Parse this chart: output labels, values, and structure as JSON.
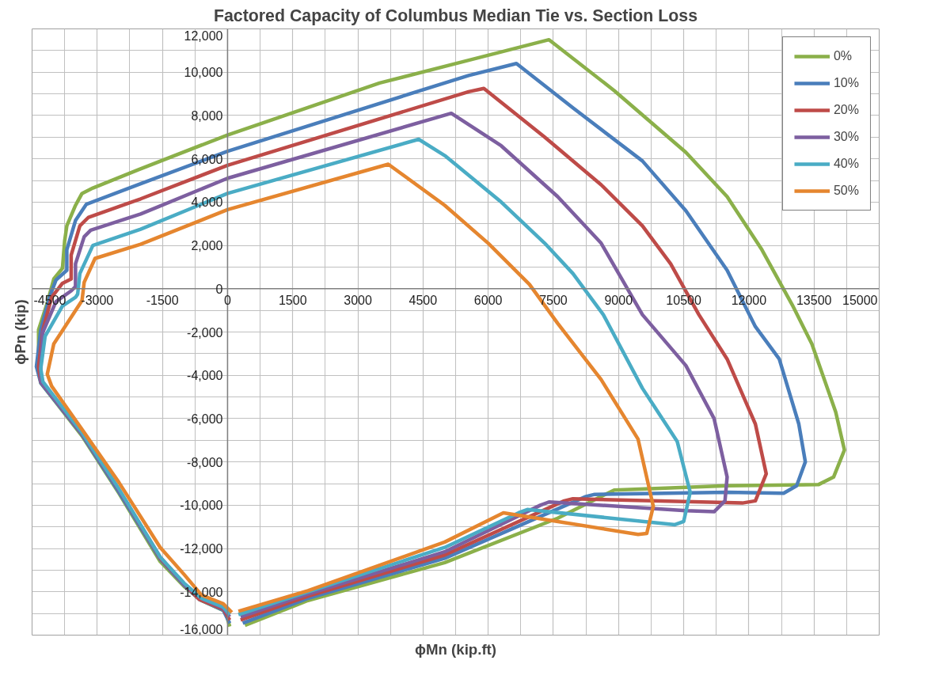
{
  "chart_data": {
    "type": "line",
    "title": "Factored Capacity of Columbus Median Tie vs. Section Loss",
    "xlabel": "ϕMn (kip.ft)",
    "ylabel": "ϕPn (kip)",
    "xlim": [
      -4500,
      15000
    ],
    "xticks": [
      -4500,
      -3000,
      -1500,
      0,
      1500,
      3000,
      4500,
      6000,
      7500,
      9000,
      10500,
      12000,
      13500,
      15000
    ],
    "ylim": [
      -16000,
      12000
    ],
    "yticks": [
      {
        "value": -16000,
        "label": "-16,000"
      },
      {
        "value": -14000,
        "label": "-14,000"
      },
      {
        "value": -12000,
        "label": "-12,000"
      },
      {
        "value": -10000,
        "label": "-10,000"
      },
      {
        "value": -8000,
        "label": "-8,000"
      },
      {
        "value": -6000,
        "label": "-6,000"
      },
      {
        "value": -4000,
        "label": "-4,000"
      },
      {
        "value": -2000,
        "label": "-2,000"
      },
      {
        "value": 0,
        "label": "0"
      },
      {
        "value": 2000,
        "label": "2,000"
      },
      {
        "value": 4000,
        "label": "4,000"
      },
      {
        "value": 6000,
        "label": "6,000"
      },
      {
        "value": 8000,
        "label": "8,000"
      },
      {
        "value": 10000,
        "label": "10,000"
      },
      {
        "value": 12000,
        "label": "12,000"
      }
    ],
    "grid": true,
    "legend": "top right",
    "marker": "none",
    "line_style": "solid",
    "series": [
      {
        "name": "0%",
        "color": "#8bb04a",
        "x": [
          50,
          -50,
          -600,
          -1000,
          -1550,
          -2500,
          -3350,
          -4300,
          -4350,
          -4350,
          -4150,
          -4000,
          -3800,
          -3750,
          -3700,
          -3500,
          -3350,
          -3100,
          -2050,
          0,
          3500,
          5550,
          7400,
          8900,
          10550,
          11500,
          12300,
          13000,
          13450,
          14000,
          14200,
          13950,
          13600,
          11500,
          8900,
          7600,
          5000,
          1850,
          400
        ],
        "values": [
          -15600,
          -14900,
          -14400,
          -13750,
          -12600,
          -9450,
          -6800,
          -4350,
          -3650,
          -1900,
          -650,
          450,
          950,
          2200,
          2900,
          3850,
          4400,
          4650,
          5500,
          7100,
          9500,
          10550,
          11500,
          9150,
          6300,
          4250,
          1800,
          -750,
          -2550,
          -5700,
          -7450,
          -8700,
          -9050,
          -9100,
          -9300,
          -10600,
          -12650,
          -14400,
          -15550
        ]
      },
      {
        "name": "10%",
        "color": "#4a7ebb",
        "x": [
          50,
          -100,
          -650,
          -1000,
          -1550,
          -2500,
          -3350,
          -4300,
          -4400,
          -4300,
          -4100,
          -3950,
          -3700,
          -3700,
          -3500,
          -3250,
          -2000,
          0,
          5550,
          6650,
          7950,
          9550,
          10550,
          11500,
          12150,
          12700,
          13150,
          13300,
          13100,
          12800,
          11500,
          8450,
          8250,
          5000,
          1850,
          350
        ],
        "values": [
          -15450,
          -14850,
          -14350,
          -13700,
          -12500,
          -9400,
          -6750,
          -4350,
          -3600,
          -1900,
          -400,
          400,
          850,
          1800,
          3150,
          3900,
          4850,
          6350,
          9850,
          10400,
          8350,
          5900,
          3600,
          850,
          -1750,
          -3250,
          -6250,
          -8000,
          -9100,
          -9450,
          -9400,
          -9500,
          -9600,
          -12450,
          -14300,
          -15450
        ]
      },
      {
        "name": "20%",
        "color": "#be4b48",
        "x": [
          50,
          -100,
          -650,
          -1000,
          -1550,
          -2500,
          -3350,
          -4300,
          -4350,
          -4250,
          -4050,
          -3800,
          -3600,
          -3600,
          -3400,
          -3200,
          -2000,
          0,
          5550,
          5900,
          7300,
          8600,
          9550,
          10200,
          10850,
          11500,
          12150,
          12400,
          12150,
          11850,
          7950,
          7750,
          5000,
          1850,
          300
        ],
        "values": [
          -15300,
          -14800,
          -14350,
          -13650,
          -12450,
          -9300,
          -6700,
          -4300,
          -3600,
          -1900,
          -400,
          250,
          450,
          1550,
          2900,
          3300,
          4150,
          5700,
          9100,
          9250,
          7000,
          4800,
          2900,
          1150,
          -1200,
          -3250,
          -6250,
          -8550,
          -9800,
          -9900,
          -9700,
          -9800,
          -12300,
          -14200,
          -15300
        ]
      },
      {
        "name": "30%",
        "color": "#7d5fa0",
        "x": [
          50,
          -100,
          -600,
          -1000,
          -1550,
          -2500,
          -3350,
          -4300,
          -4300,
          -4250,
          -3950,
          -3600,
          -3500,
          -3500,
          -3300,
          -3150,
          -2000,
          0,
          5150,
          6300,
          7600,
          8600,
          9550,
          10550,
          11200,
          11500,
          11450,
          11200,
          10550,
          7400,
          7200,
          5000,
          1850,
          300
        ],
        "values": [
          -15150,
          -14750,
          -14300,
          -13650,
          -12400,
          -9300,
          -6700,
          -4300,
          -3600,
          -2000,
          -600,
          -100,
          100,
          1150,
          2400,
          2700,
          3450,
          5100,
          8100,
          6600,
          4250,
          2100,
          -1200,
          -3550,
          -6000,
          -8700,
          -9800,
          -10300,
          -10250,
          -9850,
          -10000,
          -12150,
          -14100,
          -15150
        ]
      },
      {
        "name": "40%",
        "color": "#4aacc5",
        "x": [
          50,
          -100,
          -600,
          -1000,
          -1550,
          -2500,
          -3350,
          -4250,
          -4300,
          -4200,
          -3800,
          -3500,
          -3450,
          -3400,
          -3100,
          -2000,
          0,
          4400,
          5000,
          6300,
          7300,
          7950,
          8650,
          9550,
          10350,
          10650,
          10500,
          10300,
          6900,
          6700,
          5000,
          1850,
          250
        ],
        "values": [
          -15050,
          -14700,
          -14300,
          -13600,
          -12400,
          -9250,
          -6650,
          -4300,
          -3700,
          -2200,
          -800,
          -400,
          -250,
          700,
          2000,
          2750,
          4400,
          6900,
          6150,
          4000,
          2100,
          700,
          -1200,
          -4600,
          -7050,
          -9400,
          -10750,
          -10900,
          -10200,
          -10350,
          -11950,
          -14000,
          -15050
        ]
      },
      {
        "name": "50%",
        "color": "#e5862f",
        "x": [
          100,
          -100,
          -600,
          -1000,
          -1550,
          -2500,
          -3350,
          -4050,
          -4150,
          -4000,
          -3350,
          -3300,
          -3050,
          -2000,
          0,
          3700,
          5000,
          6000,
          6950,
          7600,
          8600,
          9450,
          9800,
          9650,
          9450,
          6350,
          5000,
          1850,
          250
        ],
        "values": [
          -14950,
          -14550,
          -14150,
          -13200,
          -11950,
          -8950,
          -6500,
          -4500,
          -3950,
          -2550,
          -550,
          300,
          1400,
          2050,
          3650,
          5750,
          3850,
          2100,
          200,
          -1600,
          -4200,
          -6950,
          -10050,
          -11300,
          -11350,
          -10350,
          -11700,
          -13950,
          -14900
        ]
      }
    ]
  }
}
